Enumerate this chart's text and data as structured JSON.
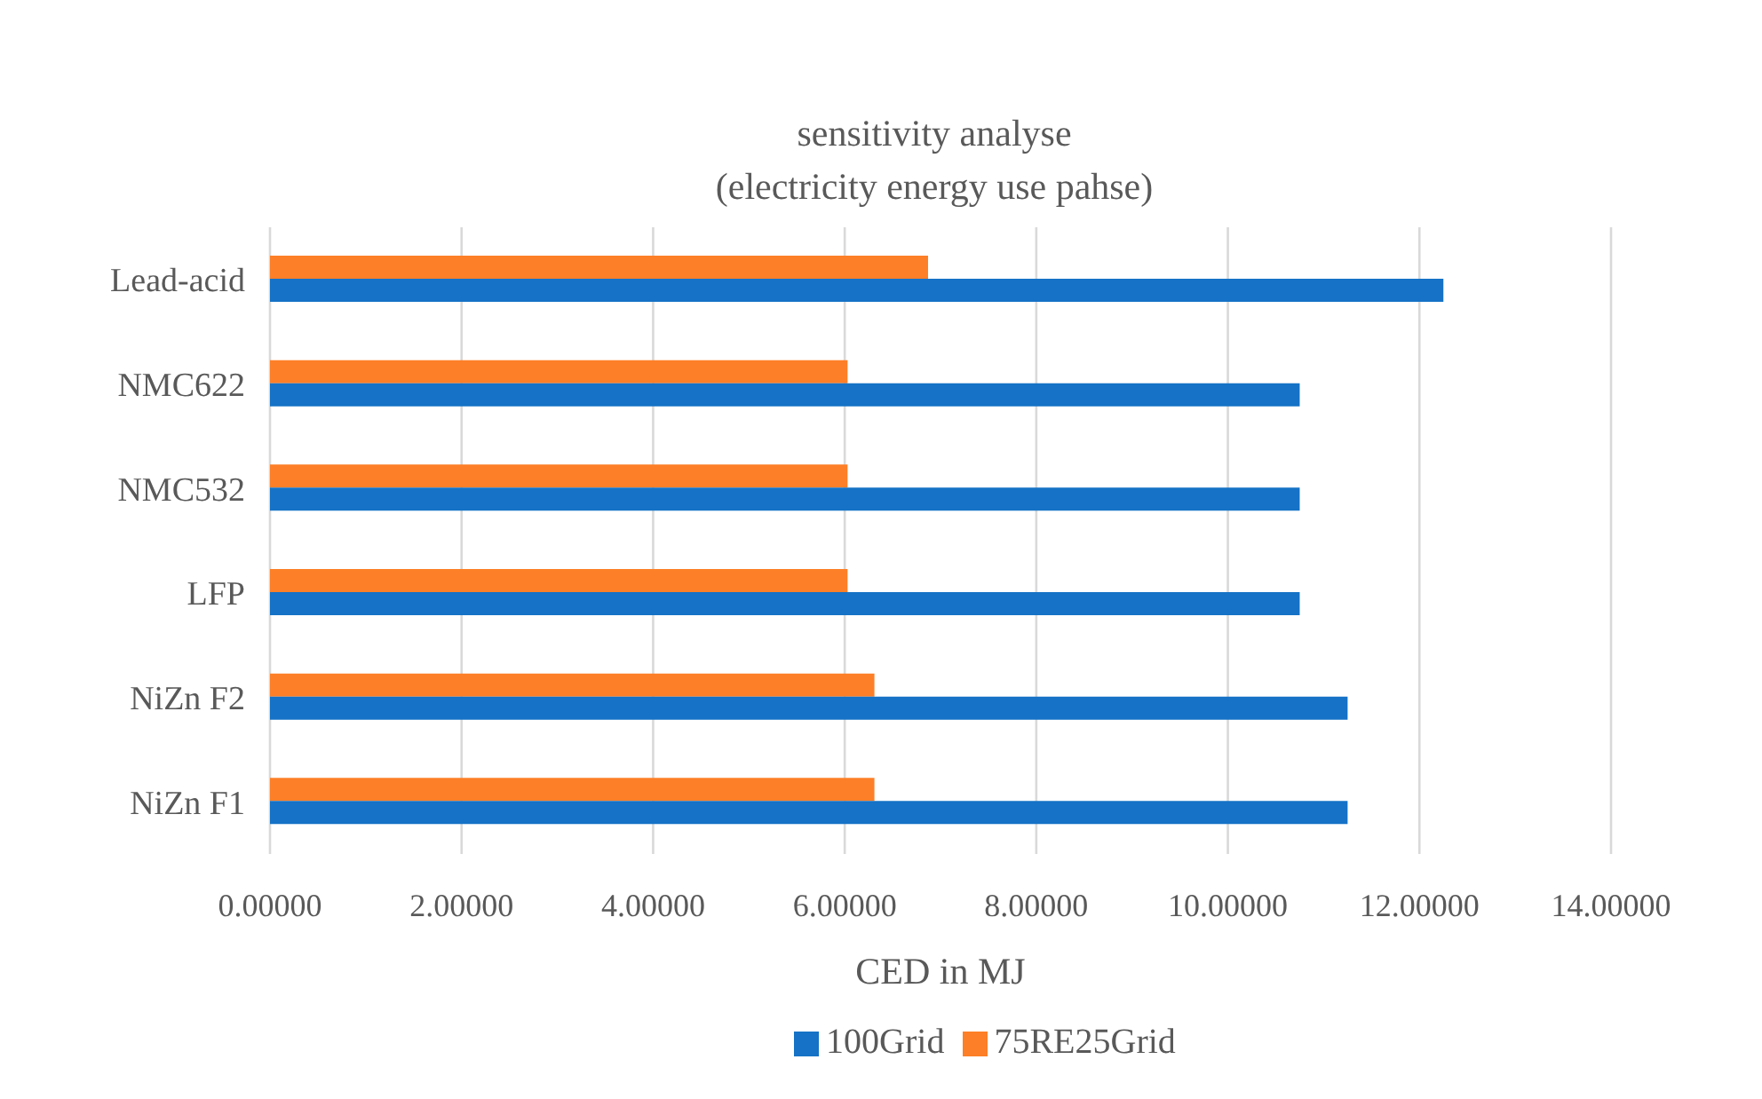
{
  "chart_data": {
    "type": "bar",
    "orientation": "horizontal",
    "title": "sensitivity analyse",
    "subtitle": "(electricity energy use pahse)",
    "xlabel": "CED in MJ",
    "categories": [
      "Lead-acid",
      "NMC622",
      "NMC532",
      "LFP",
      "NiZn F2",
      "NiZn F1"
    ],
    "series": [
      {
        "name": "75RE25Grid",
        "color": "#fd7f27",
        "values": [
          6.87,
          6.03,
          6.03,
          6.03,
          6.31,
          6.31
        ]
      },
      {
        "name": "100Grid",
        "color": "#1572c6",
        "values": [
          12.25,
          10.75,
          10.75,
          10.75,
          11.25,
          11.25
        ]
      }
    ],
    "xlim": [
      0,
      14
    ],
    "xticks": [
      {
        "value": 0,
        "label": "0.00000"
      },
      {
        "value": 2,
        "label": "2.00000"
      },
      {
        "value": 4,
        "label": "4.00000"
      },
      {
        "value": 6,
        "label": "6.00000"
      },
      {
        "value": 8,
        "label": "8.00000"
      },
      {
        "value": 10,
        "label": "10.00000"
      },
      {
        "value": 12,
        "label": "12.00000"
      },
      {
        "value": 14,
        "label": "14.00000"
      }
    ],
    "grid": "x",
    "legend": "bottom"
  }
}
